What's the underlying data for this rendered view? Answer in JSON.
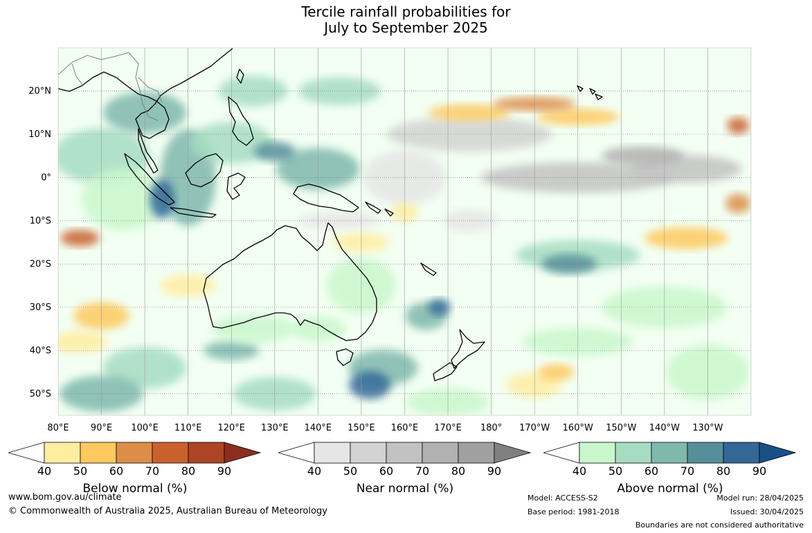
{
  "title": {
    "line1": "Tercile rainfall probabilities for",
    "line2": "July to September 2025"
  },
  "map": {
    "lat_labels": [
      "20°N",
      "10°N",
      "0°",
      "10°S",
      "20°S",
      "30°S",
      "40°S",
      "50°S"
    ],
    "lon_labels": [
      "80°E",
      "90°E",
      "100°E",
      "110°E",
      "120°E",
      "130°E",
      "140°E",
      "150°E",
      "160°E",
      "170°E",
      "180°",
      "170°W",
      "160°W",
      "150°W",
      "140°W",
      "130°W"
    ],
    "extent": {
      "lon": [
        80,
        240
      ],
      "lat": [
        -55,
        30
      ]
    }
  },
  "colorbars": [
    {
      "id": "below",
      "label": "Below normal (%)",
      "ticks": [
        "40",
        "50",
        "60",
        "70",
        "80",
        "90"
      ],
      "colors": [
        "#ffffff",
        "#ffeda0",
        "#fec95f",
        "#dc8d47",
        "#c9612e",
        "#ac4524",
        "#8c2d1e"
      ]
    },
    {
      "id": "near",
      "label": "Near normal (%)",
      "ticks": [
        "40",
        "50",
        "60",
        "70",
        "80",
        "90"
      ],
      "colors": [
        "#ffffff",
        "#e6e6e6",
        "#d3d3d3",
        "#c2c2c2",
        "#b1b1b1",
        "#a0a0a0",
        "#808080"
      ]
    },
    {
      "id": "above",
      "label": "Above normal (%)",
      "ticks": [
        "40",
        "50",
        "60",
        "70",
        "80",
        "90"
      ],
      "colors": [
        "#ffffff",
        "#c9f7cc",
        "#a6dcc2",
        "#7fb8ad",
        "#568f9a",
        "#336796",
        "#1a4f85"
      ]
    }
  ],
  "footer": {
    "url": "www.bom.gov.au/climate",
    "copyright": "© Commonwealth of Australia 2025, Australian Bureau of Meteorology",
    "model": "Model: ACCESS-S2",
    "base_period": "Base period: 1981-2018",
    "model_run": "Model run: 28/04/2025",
    "issued": "Issued: 30/04/2025",
    "boundaries": "Boundaries are not considered authoritative"
  }
}
